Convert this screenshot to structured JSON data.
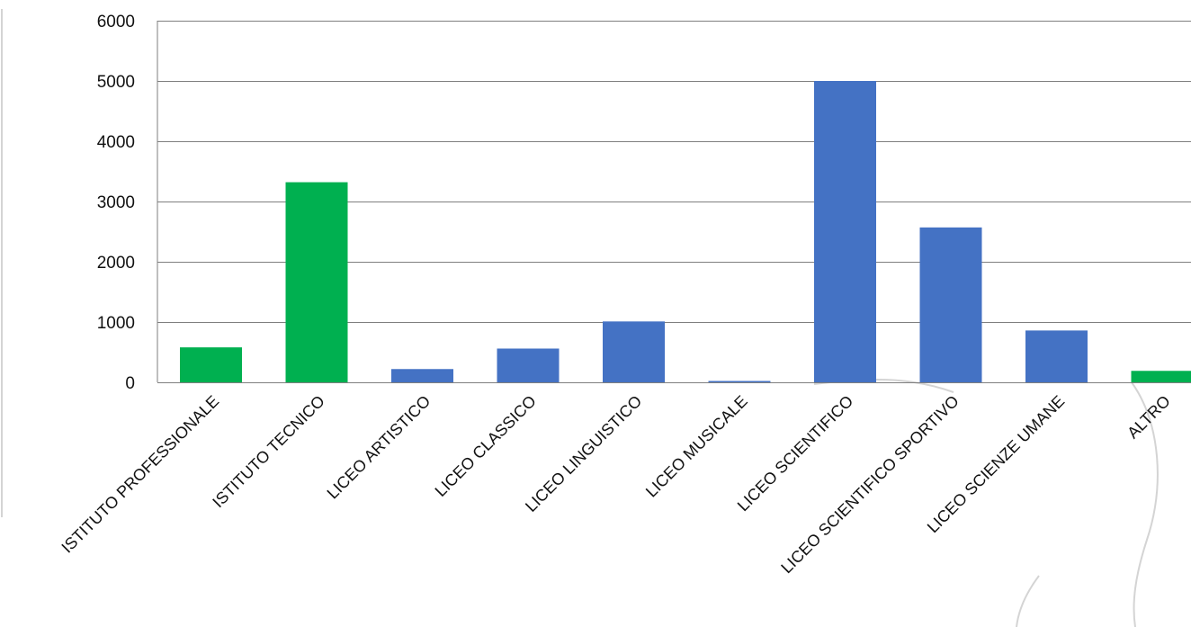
{
  "chart_data": {
    "type": "bar",
    "title": "",
    "xlabel": "",
    "ylabel": "",
    "ylim": [
      0,
      6000
    ],
    "yticks": [
      0,
      1000,
      2000,
      3000,
      4000,
      5000,
      6000
    ],
    "grid": true,
    "legend": "none",
    "categories": [
      "ISTITUTO PROFESSIONALE",
      "ISTITUTO TECNICO",
      "LICEO ARTISTICO",
      "LICEO CLASSICO",
      "LICEO LINGUISTICO",
      "LICEO MUSICALE",
      "LICEO SCIENTIFICO",
      "LICEO SCIENTIFICO SPORTIVO",
      "LICEO SCIENZE UMANE",
      "ALTRO"
    ],
    "values": [
      580,
      3320,
      220,
      560,
      1010,
      20,
      5000,
      2570,
      860,
      190
    ],
    "colors": [
      "#00b050",
      "#00b050",
      "#4472c4",
      "#4472c4",
      "#4472c4",
      "#4472c4",
      "#4472c4",
      "#4472c4",
      "#4472c4",
      "#00b050"
    ],
    "gridline_color": "#7f7f7f",
    "axis_color": "#7f7f7f"
  }
}
